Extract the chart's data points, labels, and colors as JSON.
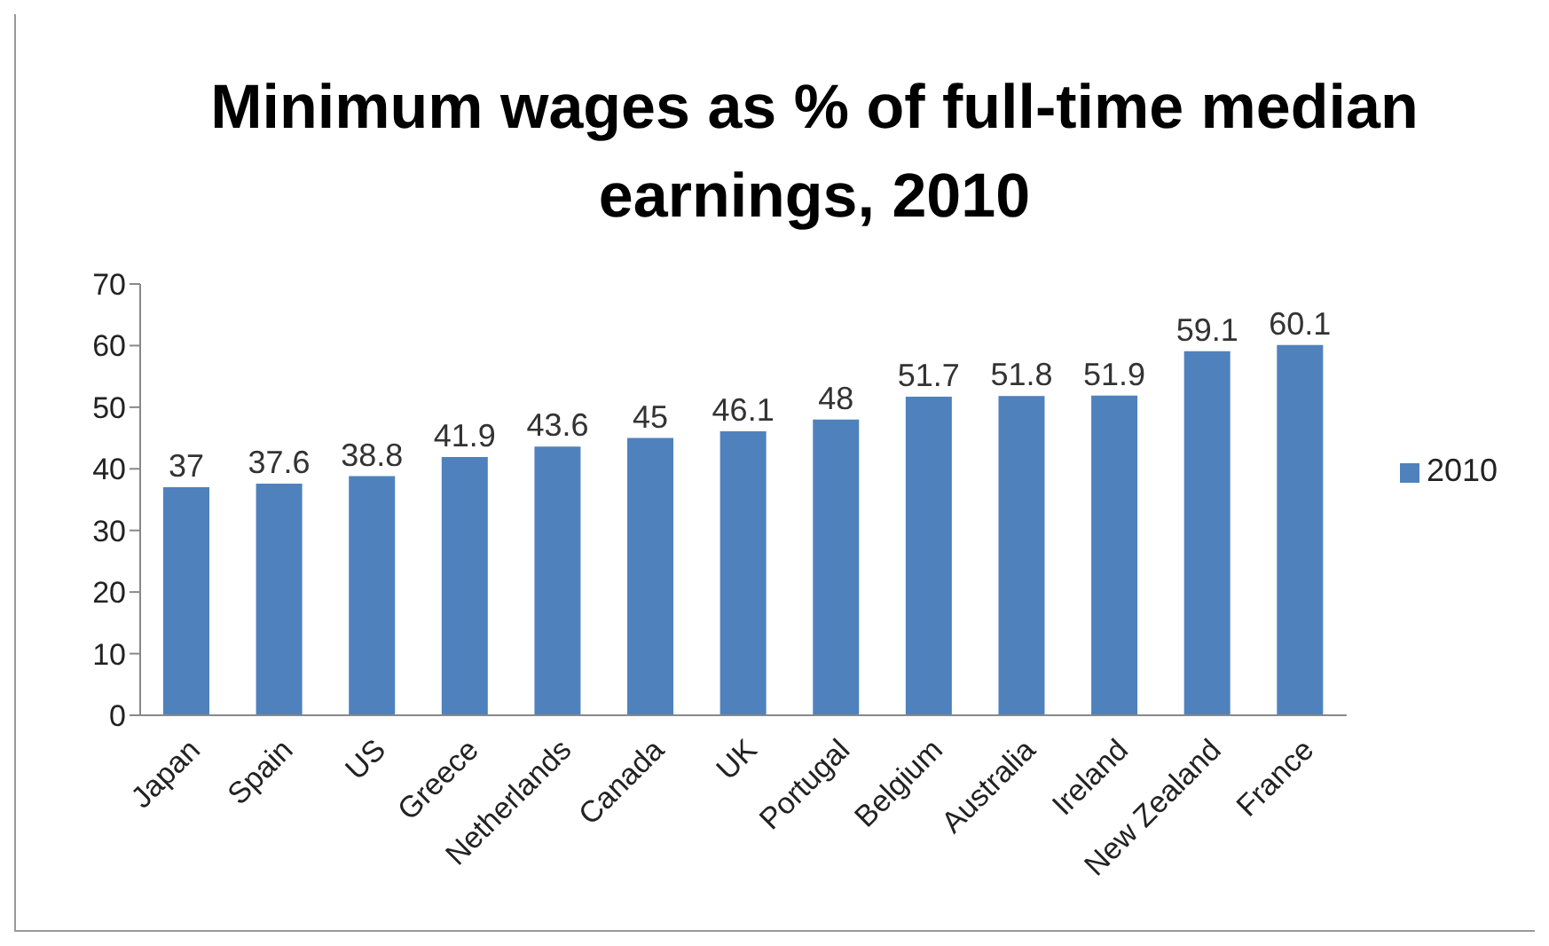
{
  "chart_data": {
    "type": "bar",
    "title": "Minimum wages as % of full-time median earnings, 2010",
    "categories": [
      "Japan",
      "Spain",
      "US",
      "Greece",
      "Netherlands",
      "Canada",
      "UK",
      "Portugal",
      "Belgium",
      "Australia",
      "Ireland",
      "New Zealand",
      "France"
    ],
    "series": [
      {
        "name": "2010",
        "color": "#4f81bd",
        "values": [
          37,
          37.6,
          38.8,
          41.9,
          43.6,
          45,
          46.1,
          48,
          51.7,
          51.8,
          51.9,
          59.1,
          60.1
        ]
      }
    ],
    "ylim": [
      0,
      70
    ],
    "yticks": [
      0,
      10,
      20,
      30,
      40,
      50,
      60,
      70
    ],
    "grid": false,
    "legend": "right",
    "data_labels": true
  }
}
